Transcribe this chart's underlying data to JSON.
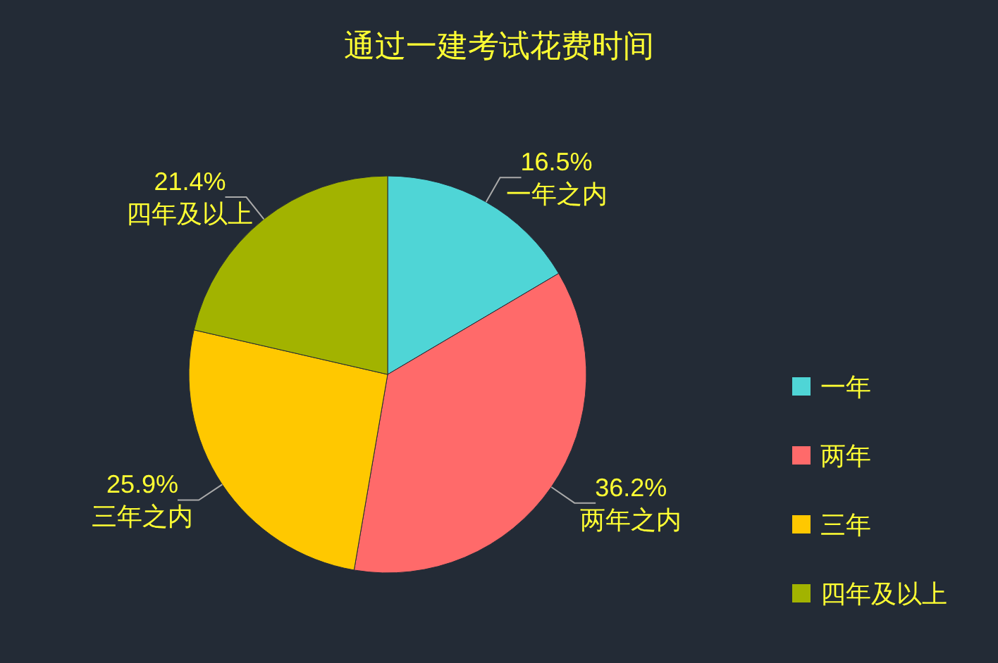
{
  "chart_data": {
    "type": "pie",
    "title": "通过一建考试花费时间",
    "categories": [
      "一年",
      "两年",
      "三年",
      "四年及以上"
    ],
    "values": [
      16.5,
      36.2,
      25.9,
      21.4
    ],
    "colors": [
      "#4fd5d6",
      "#ff6a6a",
      "#ffc800",
      "#a2b300"
    ],
    "value_labels": [
      "16.5%\n一年之内",
      "36.2%\n两年之内",
      "25.9%\n三年之内",
      "21.4%\n四年及以上"
    ],
    "legend": "right"
  }
}
